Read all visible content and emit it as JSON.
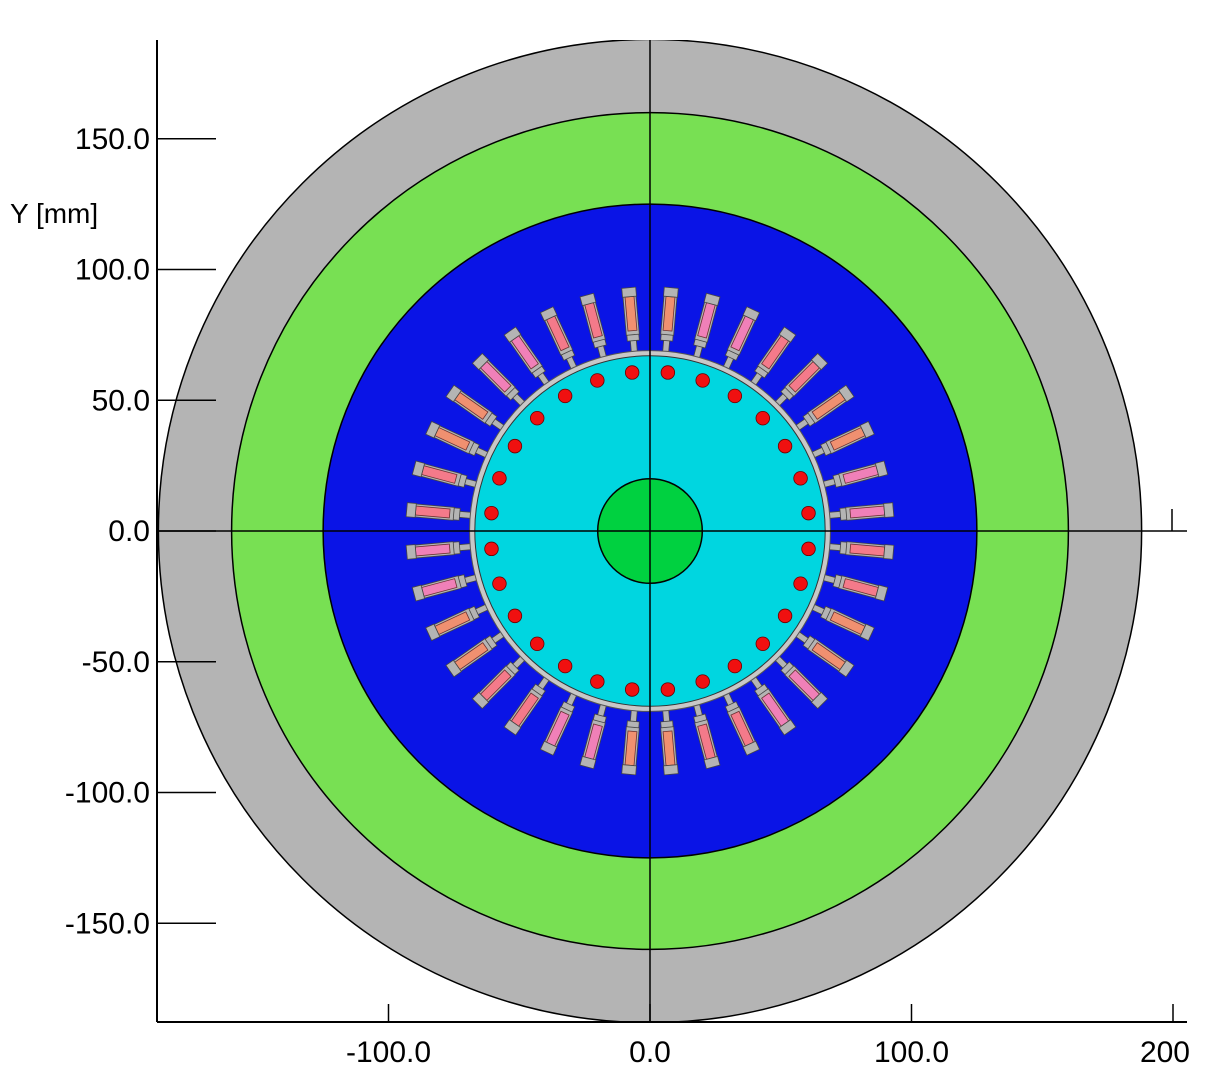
{
  "y_axis_label": "Y [mm]",
  "x_ticks": [
    "-100.0",
    "0.0",
    "100.0",
    "200"
  ],
  "y_ticks": [
    "150.0",
    "100.0",
    "50.0",
    "0.0",
    "-50.0",
    "-100.0",
    "-150.0"
  ],
  "geometry_mm": {
    "outer_frame_radius": 188,
    "outer_green_ring_radius": 160,
    "stator_outer_radius": 125,
    "air_gap_radius": 69,
    "rotor_radius": 67,
    "shaft_radius": 20,
    "stator_slot_count": 36,
    "rotor_bar_count": 28,
    "slot_inner_radius": 70,
    "slot_outer_radius": 93,
    "rotor_bar_center_radius": 61,
    "rotor_bar_radius": 2.6
  },
  "colors": {
    "frame": "#b4b4b4",
    "outer_ring": "#78e053",
    "stator_core": "#0a14e6",
    "rotor_core": "#00d6e0",
    "shaft": "#00d140",
    "slot_wedge": "#b4b4b4",
    "coil_a": "#f47a8a",
    "coil_b": "#f09070",
    "coil_c": "#f080b8",
    "rotor_bar": "#f01010"
  }
}
